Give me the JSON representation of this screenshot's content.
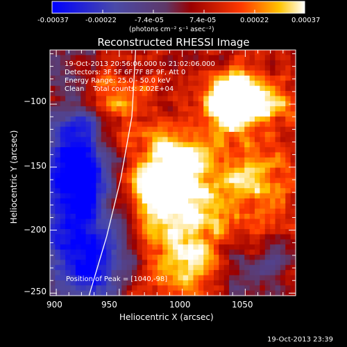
{
  "colorbar": {
    "ticks": [
      "-0.00037",
      "-0.00022",
      "-7.4e-05",
      "7.4e-05",
      "0.00022",
      "0.00037"
    ],
    "units": "(photons cm⁻² s⁻¹ asec⁻²)"
  },
  "chart_data": {
    "type": "heatmap",
    "title": "Reconstructed RHESSI Image",
    "header_lines": [
      "19-Oct-2013 20:56:06.000 to 21:02:06.000",
      "Detectors: 3F 5F 6F 7F 8F 9F, Att 0",
      "Energy Range: 25.0 - 50.0 keV",
      "Clean    Total counts: 2.02E+04"
    ],
    "annotation": "Position of Peak = [1040,-98]",
    "xlabel": "Heliocentric X (arcsec)",
    "ylabel": "Heliocentric Y (arcsec)",
    "xlim": [
      895,
      1090
    ],
    "ylim": [
      -252,
      -57
    ],
    "xticks": [
      900,
      950,
      1000,
      1050
    ],
    "yticks": [
      -100,
      -150,
      -200,
      -250
    ],
    "xtick_labels": [
      "900",
      "950",
      "1000",
      "1050"
    ],
    "ytick_labels": [
      "−100",
      "−150",
      "−200",
      "−250"
    ],
    "colorbar_range": [
      -0.00037,
      0.00037
    ],
    "peak": [
      1040,
      -98
    ],
    "limb_curve": [
      [
        963,
        -57
      ],
      [
        960,
        -110
      ],
      [
        951,
        -160
      ],
      [
        940,
        -205
      ],
      [
        926,
        -252
      ]
    ]
  },
  "footer": {
    "date": "19-Oct-2013 23:39"
  },
  "colors": {
    "background": "#000000",
    "colormap": [
      "#0000ff",
      "#5050c0",
      "#6a3a8a",
      "#a00000",
      "#ff4000",
      "#ffd000",
      "#ffffff"
    ]
  }
}
